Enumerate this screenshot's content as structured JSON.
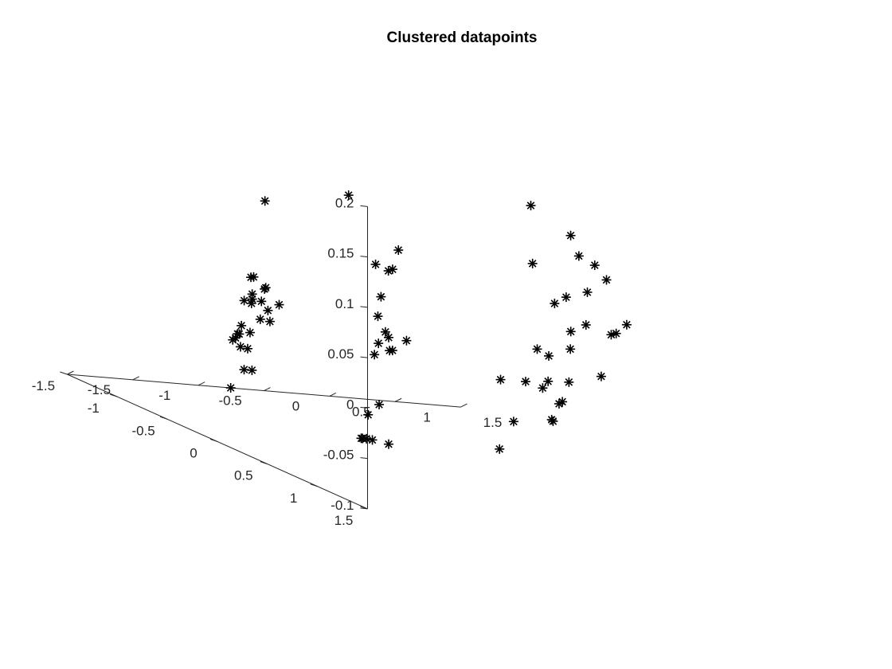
{
  "chart_data": {
    "type": "scatter",
    "title": "Clustered datapoints",
    "xlabel": "",
    "ylabel": "",
    "zlabel": "",
    "marker": "asterisk",
    "marker_color": "#000000",
    "grid": false,
    "xlim": [
      -1.5,
      1.5
    ],
    "ylim": [
      -1.5,
      1.5
    ],
    "zlim": [
      -0.1,
      0.2
    ],
    "z_ticks": [
      "0.2",
      "0.15",
      "0.1",
      "0.05",
      "0",
      "-0.05",
      "-0.1"
    ],
    "z_tick_values": [
      0.2,
      0.15,
      0.1,
      0.05,
      0,
      -0.05,
      -0.1
    ],
    "left_axis_ticks": [
      "1.5",
      "1",
      "0.5",
      "0",
      "-0.5",
      "-1",
      "-1.5"
    ],
    "left_axis_tick_values": [
      1.5,
      1,
      0.5,
      0,
      -0.5,
      -1,
      -1.5
    ],
    "right_axis_ticks": [
      "-1.5",
      "-1",
      "-0.5",
      "0",
      "0.5",
      "1",
      "1.5"
    ],
    "right_axis_tick_values": [
      -1.5,
      -1,
      -0.5,
      0,
      0.5,
      1,
      1.5
    ],
    "points": [
      {
        "x": -1.28,
        "y": 0.14,
        "z": 0.03
      },
      {
        "x": -1.29,
        "y": 0.2,
        "z": 0.15
      },
      {
        "x": -1.3,
        "y": 0.1,
        "z": 0.07
      },
      {
        "x": -1.29,
        "y": 0.06,
        "z": 0.068
      },
      {
        "x": -1.24,
        "y": 0.13,
        "z": 0.06
      },
      {
        "x": -1.22,
        "y": 0.25,
        "z": 0.05
      },
      {
        "x": -1.25,
        "y": 0.02,
        "z": 0.05
      },
      {
        "x": -1.25,
        "y": 0.02,
        "z": 0.045
      },
      {
        "x": -1.24,
        "y": 0.0,
        "z": 0.04
      },
      {
        "x": -1.21,
        "y": 0.06,
        "z": 0.045
      },
      {
        "x": -1.2,
        "y": 0.09,
        "z": 0.06
      },
      {
        "x": -1.25,
        "y": -0.06,
        "z": 0.04
      },
      {
        "x": -1.19,
        "y": -0.08,
        "z": 0.008
      },
      {
        "x": -1.28,
        "y": -0.07,
        "z": 0.006
      },
      {
        "x": -1.27,
        "y": -0.1,
        "z": 0.005
      },
      {
        "x": -1.21,
        "y": -0.14,
        "z": 0.012
      },
      {
        "x": -1.27,
        "y": -0.12,
        "z": 0.0
      },
      {
        "x": -1.24,
        "y": -0.11,
        "z": -0.008
      },
      {
        "x": -1.17,
        "y": -0.13,
        "z": -0.01
      },
      {
        "x": -1.23,
        "y": -0.2,
        "z": -0.005
      },
      {
        "x": -1.22,
        "y": -0.1,
        "z": -0.03
      },
      {
        "x": -1.13,
        "y": 0.04,
        "z": 0.025
      },
      {
        "x": -1.13,
        "y": 0.02,
        "z": 0.035
      },
      {
        "x": -1.16,
        "y": -0.1,
        "z": -0.03
      },
      {
        "x": -1.2,
        "y": -0.26,
        "z": -0.055
      },
      {
        "x": -0.66,
        "y": 0.21,
        "z": 0.163
      },
      {
        "x": -0.12,
        "y": 0.0,
        "z": 0.105
      },
      {
        "x": -0.12,
        "y": -0.1,
        "z": 0.08
      },
      {
        "x": -0.05,
        "y": -0.15,
        "z": 0.08
      },
      {
        "x": -0.21,
        "y": -0.11,
        "z": 0.085
      },
      {
        "x": -0.1,
        "y": -0.2,
        "z": 0.05
      },
      {
        "x": -0.2,
        "y": -0.1,
        "z": 0.034
      },
      {
        "x": -0.12,
        "y": -0.13,
        "z": 0.018
      },
      {
        "x": -0.02,
        "y": -0.05,
        "z": 0.014
      },
      {
        "x": -0.08,
        "y": -0.15,
        "z": 0.012
      },
      {
        "x": -0.15,
        "y": -0.16,
        "z": 0.005
      },
      {
        "x": -0.02,
        "y": -0.19,
        "z": -0.002
      },
      {
        "x": -0.15,
        "y": -0.2,
        "z": -0.008
      },
      {
        "x": -0.05,
        "y": -0.18,
        "z": -0.002
      },
      {
        "x": -0.16,
        "y": -0.14,
        "z": -0.055
      },
      {
        "x": -0.16,
        "y": -0.25,
        "z": -0.07
      },
      {
        "x": -0.15,
        "y": -0.28,
        "z": -0.095
      },
      {
        "x": -0.12,
        "y": -0.26,
        "z": -0.095
      },
      {
        "x": -0.19,
        "y": -0.28,
        "z": -0.095
      },
      {
        "x": -0.18,
        "y": -0.28,
        "z": -0.095
      },
      {
        "x": 0.05,
        "y": -0.32,
        "z": -0.1
      },
      {
        "x": 0.05,
        "y": 1.1,
        "z": 0.2
      },
      {
        "x": 0.85,
        "y": 0.45,
        "z": 0.15
      },
      {
        "x": 0.92,
        "y": 0.44,
        "z": 0.13
      },
      {
        "x": 0.98,
        "y": 0.52,
        "z": 0.125
      },
      {
        "x": 0.75,
        "y": 0.2,
        "z": 0.11
      },
      {
        "x": 1.1,
        "y": 0.48,
        "z": 0.11
      },
      {
        "x": 1.0,
        "y": 0.42,
        "z": 0.094
      },
      {
        "x": 0.93,
        "y": 0.3,
        "z": 0.083
      },
      {
        "x": 0.88,
        "y": 0.25,
        "z": 0.074
      },
      {
        "x": 1.02,
        "y": 0.38,
        "z": 0.06
      },
      {
        "x": 1.22,
        "y": 0.37,
        "z": 0.052
      },
      {
        "x": 1.25,
        "y": 0.38,
        "z": 0.054
      },
      {
        "x": 1.3,
        "y": 0.42,
        "z": 0.065
      },
      {
        "x": 0.95,
        "y": 0.32,
        "z": 0.05
      },
      {
        "x": 1.0,
        "y": 0.25,
        "z": 0.03
      },
      {
        "x": 0.9,
        "y": 0.05,
        "z": 0.02
      },
      {
        "x": 0.95,
        "y": 0.1,
        "z": 0.016
      },
      {
        "x": 0.96,
        "y": 0.08,
        "z": -0.01
      },
      {
        "x": 0.85,
        "y": 0.0,
        "z": -0.015
      },
      {
        "x": 0.98,
        "y": 0.0,
        "z": -0.02
      },
      {
        "x": 0.72,
        "y": -0.08,
        "z": -0.018
      },
      {
        "x": 1.18,
        "y": 0.0,
        "z": -0.012
      },
      {
        "x": 1.35,
        "y": 0.1,
        "z": 0.0
      },
      {
        "x": 1.13,
        "y": 0.0,
        "z": -0.032
      },
      {
        "x": 1.12,
        "y": -0.02,
        "z": -0.035
      },
      {
        "x": 1.12,
        "y": -0.08,
        "z": -0.055
      },
      {
        "x": 1.14,
        "y": -0.12,
        "z": -0.055
      },
      {
        "x": 0.85,
        "y": -0.12,
        "z": -0.06
      },
      {
        "x": 0.88,
        "y": -0.3,
        "z": -0.095
      }
    ]
  }
}
